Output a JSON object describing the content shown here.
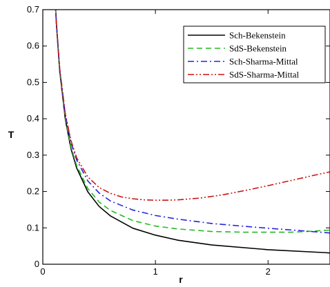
{
  "chart_data": {
    "type": "line",
    "title": "",
    "xlabel": "r",
    "ylabel": "T",
    "xlim": [
      0,
      2.55
    ],
    "ylim": [
      0,
      0.7
    ],
    "xticks": [
      0,
      1,
      2
    ],
    "yticks": [
      0,
      0.1,
      0.2,
      0.3,
      0.4,
      0.5,
      0.6,
      0.7
    ],
    "legend_position": "top-right",
    "grid": false,
    "series": [
      {
        "name": "Sch-Bekenstein",
        "color": "#000000",
        "dash": "solid",
        "x": [
          0.1,
          0.12,
          0.15,
          0.2,
          0.25,
          0.3,
          0.4,
          0.5,
          0.6,
          0.8,
          1.0,
          1.2,
          1.5,
          2.0,
          2.5,
          2.55
        ],
        "y": [
          0.796,
          0.663,
          0.531,
          0.398,
          0.318,
          0.265,
          0.199,
          0.159,
          0.133,
          0.099,
          0.08,
          0.066,
          0.053,
          0.04,
          0.032,
          0.031
        ]
      },
      {
        "name": "SdS-Bekenstein",
        "color": "#22bb22",
        "dash": "dashed",
        "x": [
          0.1,
          0.12,
          0.15,
          0.2,
          0.25,
          0.3,
          0.4,
          0.5,
          0.6,
          0.8,
          1.0,
          1.2,
          1.5,
          1.8,
          2.0,
          2.2,
          2.4,
          2.55
        ],
        "y": [
          0.796,
          0.664,
          0.533,
          0.402,
          0.323,
          0.272,
          0.208,
          0.171,
          0.148,
          0.12,
          0.105,
          0.097,
          0.09,
          0.088,
          0.088,
          0.088,
          0.091,
          0.094
        ]
      },
      {
        "name": "Sch-Sharma-Mittal",
        "color": "#2222dd",
        "dash": "dashdot",
        "x": [
          0.1,
          0.12,
          0.15,
          0.2,
          0.25,
          0.3,
          0.4,
          0.5,
          0.6,
          0.8,
          1.0,
          1.2,
          1.5,
          1.8,
          2.0,
          2.3,
          2.55
        ],
        "y": [
          0.797,
          0.666,
          0.537,
          0.41,
          0.335,
          0.287,
          0.229,
          0.196,
          0.174,
          0.149,
          0.134,
          0.124,
          0.112,
          0.104,
          0.099,
          0.092,
          0.086
        ]
      },
      {
        "name": "SdS-Sharma-Mittal",
        "color": "#cc1111",
        "dash": "dashdotdot",
        "x": [
          0.1,
          0.12,
          0.15,
          0.2,
          0.25,
          0.3,
          0.4,
          0.5,
          0.6,
          0.7,
          0.8,
          0.9,
          1.0,
          1.1,
          1.2,
          1.4,
          1.6,
          1.8,
          2.0,
          2.2,
          2.4,
          2.55
        ],
        "y": [
          0.797,
          0.667,
          0.538,
          0.413,
          0.34,
          0.293,
          0.24,
          0.211,
          0.195,
          0.185,
          0.18,
          0.177,
          0.176,
          0.176,
          0.177,
          0.182,
          0.191,
          0.203,
          0.216,
          0.23,
          0.244,
          0.254
        ]
      }
    ]
  }
}
